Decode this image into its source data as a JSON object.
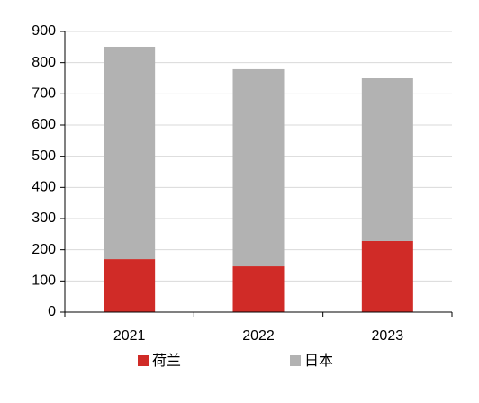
{
  "chart_data": {
    "type": "stacked_bar",
    "categories": [
      "2021",
      "2022",
      "2023"
    ],
    "series": [
      {
        "name": "荷兰",
        "color": "#d02b27",
        "values": [
          170,
          147,
          228
        ]
      },
      {
        "name": "日本",
        "color": "#b2b2b2",
        "values": [
          681,
          632,
          522
        ]
      }
    ],
    "ylim": [
      0,
      900
    ],
    "yticks": [
      0,
      100,
      200,
      300,
      400,
      500,
      600,
      700,
      800,
      900
    ],
    "grid": true,
    "legend": "bottom"
  }
}
